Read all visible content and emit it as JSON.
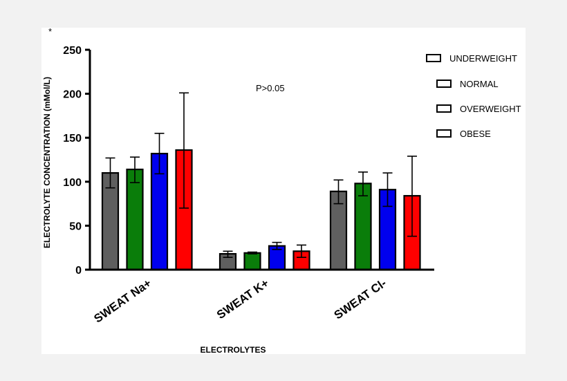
{
  "chart_data": {
    "type": "bar",
    "title": "",
    "xlabel": "ELECTROLYTES",
    "ylabel": "ELECTROLYTE CONCENTRATION (mMol/L)",
    "ylim": [
      0,
      250
    ],
    "yticks": [
      0,
      50,
      100,
      150,
      200,
      250
    ],
    "categories": [
      "SWEAT Na+",
      "SWEAT K+",
      "SWEAT Cl-"
    ],
    "series": [
      {
        "name": "UNDERWEIGHT",
        "color": "#5f5f5f",
        "values": [
          110,
          18,
          89
        ],
        "err_low": [
          93,
          14,
          75
        ],
        "err_high": [
          127,
          21,
          102
        ]
      },
      {
        "name": "NORMAL",
        "color": "#0a7d0a",
        "values": [
          114,
          19,
          98
        ],
        "err_low": [
          99,
          18,
          84
        ],
        "err_high": [
          128,
          20,
          111
        ]
      },
      {
        "name": "OVERWEIGHT",
        "color": "#0000ee",
        "values": [
          132,
          27,
          91
        ],
        "err_low": [
          109,
          23,
          72
        ],
        "err_high": [
          155,
          31,
          110
        ]
      },
      {
        "name": "OBESE",
        "color": "#ff0000",
        "values": [
          136,
          21,
          84
        ],
        "err_low": [
          70,
          14,
          38
        ],
        "err_high": [
          201,
          28,
          129
        ]
      }
    ],
    "annotations": [
      "P>0.05",
      "*"
    ],
    "legend_position": "top-right",
    "grid": false
  }
}
